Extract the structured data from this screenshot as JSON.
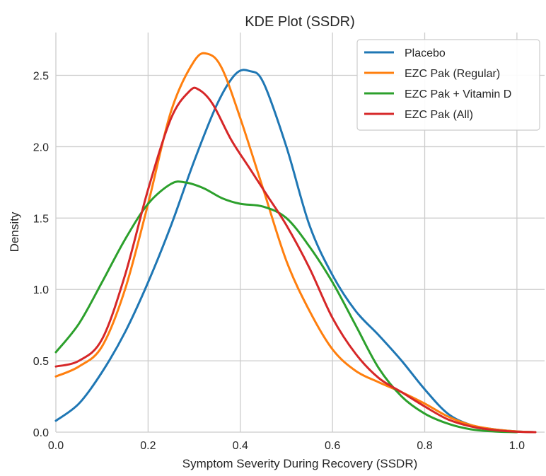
{
  "chart_data": {
    "type": "line",
    "title": "KDE Plot (SSDR)",
    "xlabel": "Symptom Severity During Recovery (SSDR)",
    "ylabel": "Density",
    "xlim": [
      0.0,
      1.06
    ],
    "ylim": [
      0.0,
      2.8
    ],
    "xticks": [
      0.0,
      0.2,
      0.4,
      0.6,
      0.8,
      1.0
    ],
    "yticks": [
      0.0,
      0.5,
      1.0,
      1.5,
      2.0,
      2.5
    ],
    "xtick_labels": [
      "0.0",
      "0.2",
      "0.4",
      "0.6",
      "0.8",
      "1.0"
    ],
    "ytick_labels": [
      "0.0",
      "0.5",
      "1.0",
      "1.5",
      "2.0",
      "2.5"
    ],
    "grid": true,
    "legend_position": "top-right",
    "series": [
      {
        "name": "Placebo",
        "color": "#1f77b4",
        "points": [
          [
            0.0,
            0.08
          ],
          [
            0.05,
            0.2
          ],
          [
            0.1,
            0.42
          ],
          [
            0.15,
            0.7
          ],
          [
            0.2,
            1.05
          ],
          [
            0.25,
            1.45
          ],
          [
            0.3,
            1.9
          ],
          [
            0.35,
            2.3
          ],
          [
            0.39,
            2.51
          ],
          [
            0.42,
            2.53
          ],
          [
            0.45,
            2.45
          ],
          [
            0.5,
            2.0
          ],
          [
            0.55,
            1.45
          ],
          [
            0.6,
            1.1
          ],
          [
            0.65,
            0.85
          ],
          [
            0.7,
            0.68
          ],
          [
            0.75,
            0.5
          ],
          [
            0.8,
            0.3
          ],
          [
            0.85,
            0.13
          ],
          [
            0.9,
            0.05
          ],
          [
            0.95,
            0.02
          ],
          [
            1.0,
            0.005
          ],
          [
            1.04,
            0.0
          ]
        ]
      },
      {
        "name": "EZC Pak (Regular)",
        "color": "#ff7f0e",
        "points": [
          [
            0.0,
            0.39
          ],
          [
            0.05,
            0.46
          ],
          [
            0.1,
            0.6
          ],
          [
            0.15,
            1.0
          ],
          [
            0.2,
            1.6
          ],
          [
            0.25,
            2.25
          ],
          [
            0.3,
            2.6
          ],
          [
            0.33,
            2.65
          ],
          [
            0.36,
            2.55
          ],
          [
            0.4,
            2.2
          ],
          [
            0.45,
            1.7
          ],
          [
            0.5,
            1.2
          ],
          [
            0.55,
            0.85
          ],
          [
            0.6,
            0.58
          ],
          [
            0.65,
            0.43
          ],
          [
            0.7,
            0.35
          ],
          [
            0.75,
            0.28
          ],
          [
            0.8,
            0.2
          ],
          [
            0.85,
            0.11
          ],
          [
            0.9,
            0.05
          ],
          [
            0.95,
            0.02
          ],
          [
            1.0,
            0.005
          ],
          [
            1.04,
            0.0
          ]
        ]
      },
      {
        "name": "EZC Pak + Vitamin D",
        "color": "#2ca02c",
        "points": [
          [
            0.0,
            0.56
          ],
          [
            0.05,
            0.76
          ],
          [
            0.1,
            1.05
          ],
          [
            0.15,
            1.35
          ],
          [
            0.2,
            1.6
          ],
          [
            0.25,
            1.74
          ],
          [
            0.28,
            1.75
          ],
          [
            0.32,
            1.71
          ],
          [
            0.36,
            1.64
          ],
          [
            0.4,
            1.6
          ],
          [
            0.45,
            1.58
          ],
          [
            0.5,
            1.5
          ],
          [
            0.55,
            1.3
          ],
          [
            0.6,
            1.05
          ],
          [
            0.65,
            0.75
          ],
          [
            0.7,
            0.45
          ],
          [
            0.75,
            0.25
          ],
          [
            0.8,
            0.13
          ],
          [
            0.85,
            0.06
          ],
          [
            0.9,
            0.02
          ],
          [
            0.95,
            0.005
          ],
          [
            1.0,
            0.0
          ]
        ]
      },
      {
        "name": "EZC Pak (All)",
        "color": "#d62728",
        "points": [
          [
            0.0,
            0.46
          ],
          [
            0.05,
            0.5
          ],
          [
            0.1,
            0.65
          ],
          [
            0.15,
            1.1
          ],
          [
            0.2,
            1.7
          ],
          [
            0.25,
            2.2
          ],
          [
            0.29,
            2.39
          ],
          [
            0.31,
            2.4
          ],
          [
            0.34,
            2.3
          ],
          [
            0.38,
            2.05
          ],
          [
            0.42,
            1.85
          ],
          [
            0.46,
            1.65
          ],
          [
            0.5,
            1.45
          ],
          [
            0.55,
            1.15
          ],
          [
            0.6,
            0.8
          ],
          [
            0.65,
            0.55
          ],
          [
            0.7,
            0.38
          ],
          [
            0.75,
            0.28
          ],
          [
            0.8,
            0.18
          ],
          [
            0.85,
            0.09
          ],
          [
            0.9,
            0.04
          ],
          [
            0.95,
            0.015
          ],
          [
            1.0,
            0.003
          ],
          [
            1.04,
            0.0
          ]
        ]
      }
    ]
  }
}
